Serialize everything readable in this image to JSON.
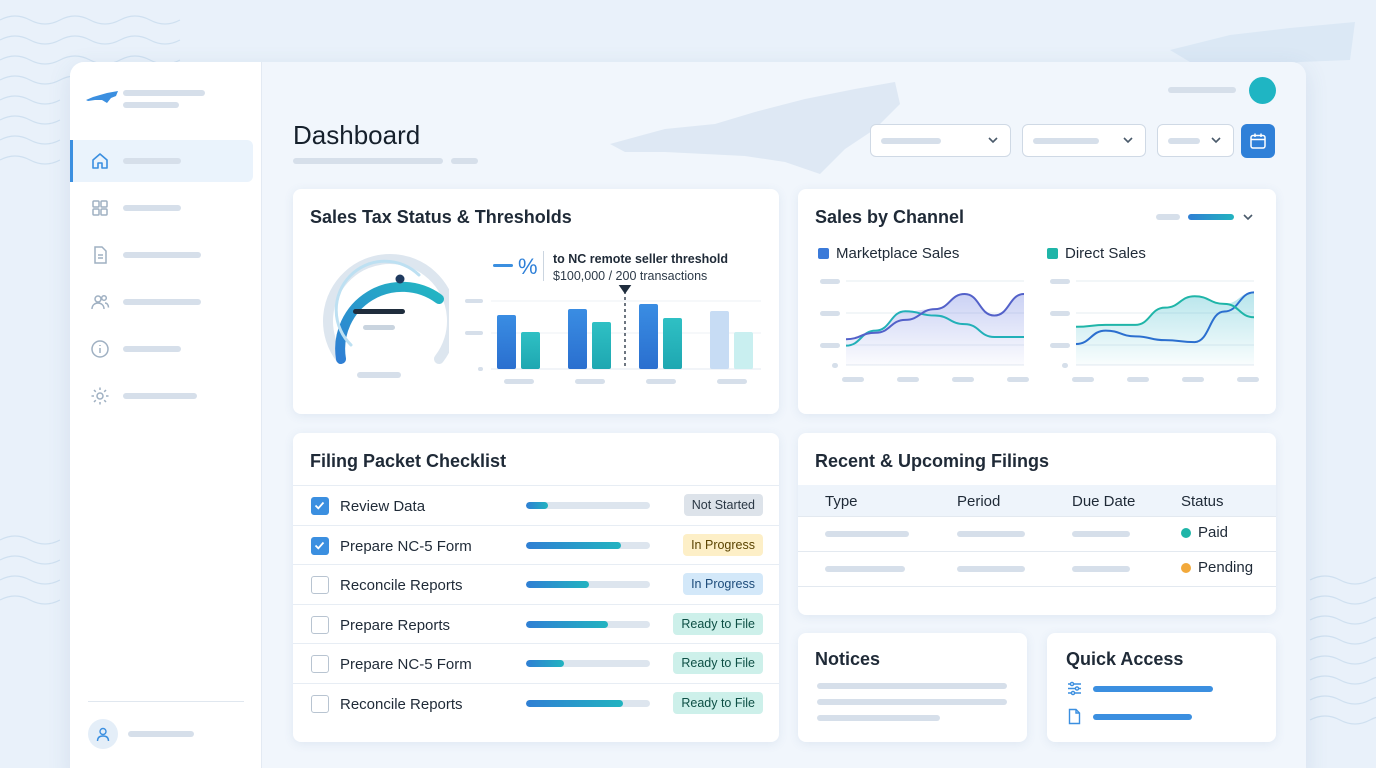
{
  "page": {
    "title": "Dashboard"
  },
  "colors": {
    "accent": "#2f80d8",
    "teal": "#1fb5c3",
    "paid": "#1fb5a8",
    "pending": "#f2a93b"
  },
  "sidebar": {
    "items": [
      {
        "icon": "home-icon",
        "active": true
      },
      {
        "icon": "grid-icon",
        "active": false
      },
      {
        "icon": "document-icon",
        "active": false
      },
      {
        "icon": "users-icon",
        "active": false
      },
      {
        "icon": "info-icon",
        "active": false
      },
      {
        "icon": "gear-icon",
        "active": false
      }
    ]
  },
  "header": {
    "filters": [
      {
        "icon": "chevron-down-icon"
      },
      {
        "icon": "chevron-down-icon"
      },
      {
        "icon": "chevron-down-icon"
      }
    ],
    "calendar_icon": "calendar-icon"
  },
  "tax_status": {
    "title": "Sales Tax Status & Thresholds",
    "percent_symbol": "%",
    "threshold_label": "to NC remote seller threshold",
    "threshold_value": "$100,000 / 200 transactions",
    "chart_data": {
      "type": "bar",
      "categories": [
        "",
        "",
        "",
        ""
      ],
      "series": [
        {
          "values": [
            54,
            60,
            65,
            58
          ]
        },
        {
          "values": [
            37,
            47,
            51,
            37
          ]
        }
      ],
      "ylim": [
        0,
        80
      ],
      "threshold_marker_between": [
        2,
        3
      ]
    }
  },
  "sales_channel": {
    "title": "Sales by Channel",
    "chart_data": [
      {
        "type": "area",
        "title": "Marketplace Sales",
        "x": [
          0,
          1,
          2,
          3,
          4,
          5,
          6
        ],
        "series": [
          {
            "name": "Marketplace Sales",
            "values": [
              1.2,
              1.5,
              2.1,
              2.6,
              3.3,
              2.3,
              3.3
            ]
          },
          {
            "values": [
              0.9,
              1.6,
              2.5,
              2.3,
              1.9,
              1.3,
              1.3
            ]
          }
        ],
        "ylim": [
          0,
          4
        ]
      },
      {
        "type": "area",
        "title": "Direct Sales",
        "x": [
          0,
          1,
          2,
          3,
          4,
          5,
          6
        ],
        "series": [
          {
            "name": "Direct Sales",
            "values": [
              2.0,
              2.1,
              2.1,
              3.0,
              3.6,
              3.2,
              2.5
            ]
          },
          {
            "values": [
              1.1,
              1.8,
              1.5,
              1.3,
              1.2,
              2.8,
              3.8
            ]
          }
        ],
        "ylim": [
          0,
          4.5
        ]
      }
    ]
  },
  "checklist": {
    "title": "Filing Packet Checklist",
    "rows": [
      {
        "label": "Review Data",
        "checked": true,
        "progress": 0.18,
        "status": "Not Started",
        "status_bg": "#dde3ea",
        "status_fg": "#2a3744"
      },
      {
        "label": "Prepare NC-5 Form",
        "checked": true,
        "progress": 0.77,
        "status": "In Progress",
        "status_bg": "#fdefc7",
        "status_fg": "#5a4300"
      },
      {
        "label": "Reconcile Reports",
        "checked": false,
        "progress": 0.51,
        "status": "In Progress",
        "status_bg": "#d3e8f9",
        "status_fg": "#1c4b7a"
      },
      {
        "label": "Prepare Reports",
        "checked": false,
        "progress": 0.66,
        "status": "Ready to File",
        "status_bg": "#cdf0ea",
        "status_fg": "#0d4f45"
      },
      {
        "label": "Prepare NC-5 Form",
        "checked": false,
        "progress": 0.31,
        "status": "Ready to File",
        "status_bg": "#cdf0ea",
        "status_fg": "#0d4f45"
      },
      {
        "label": "Reconcile Reports",
        "checked": false,
        "progress": 0.78,
        "status": "Ready to File",
        "status_bg": "#cdf0ea",
        "status_fg": "#0d4f45"
      }
    ]
  },
  "filings": {
    "title": "Recent & Upcoming Filings",
    "columns": [
      "Type",
      "Period",
      "Due Date",
      "Status"
    ],
    "rows": [
      {
        "status": "Paid",
        "dot": "#1fb5a8"
      },
      {
        "status": "Pending",
        "dot": "#f2a93b"
      }
    ]
  },
  "notices": {
    "title": "Notices"
  },
  "quick_access": {
    "title": "Quick Access",
    "items": [
      {
        "icon": "filter-icon"
      },
      {
        "icon": "file-icon"
      }
    ]
  }
}
